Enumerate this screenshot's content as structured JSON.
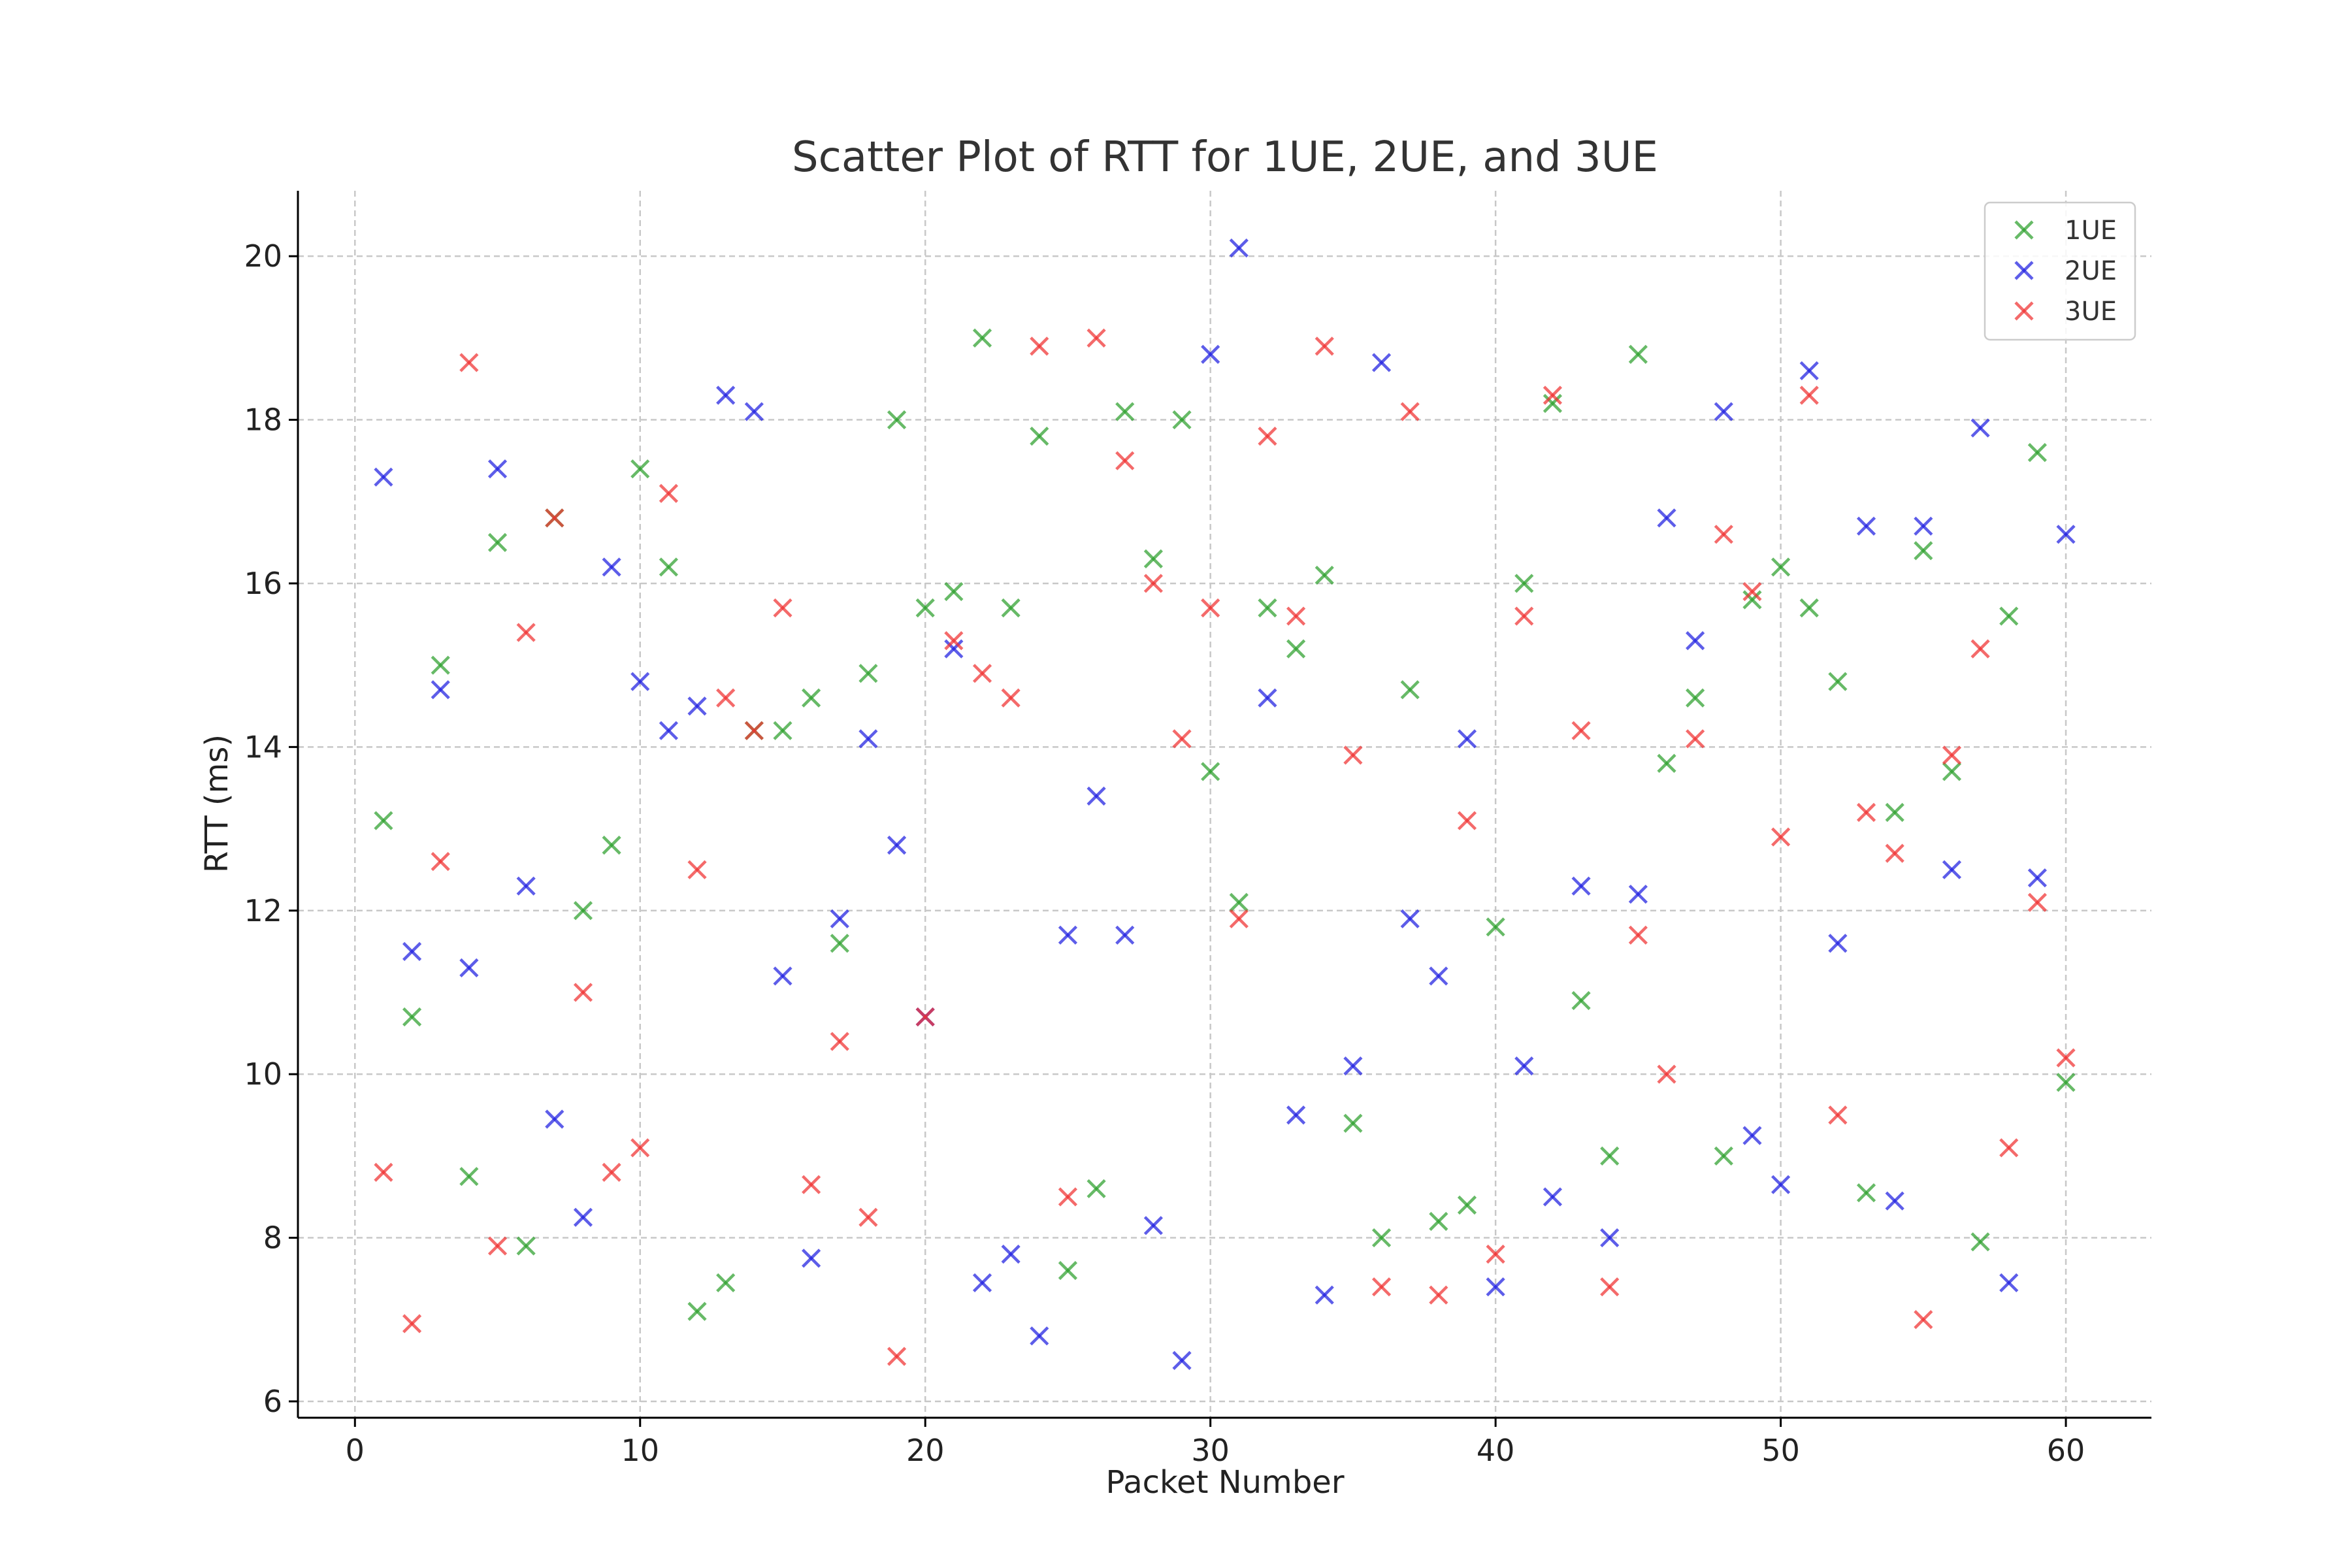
{
  "chart_data": {
    "type": "scatter",
    "title": "Scatter Plot of RTT for 1UE, 2UE, and 3UE",
    "xlabel": "Packet Number",
    "ylabel": "RTT (ms)",
    "xlim": [
      -2,
      63
    ],
    "ylim": [
      5.8,
      20.8
    ],
    "xticks": [
      0,
      10,
      20,
      30,
      40,
      50,
      60
    ],
    "yticks": [
      6,
      8,
      10,
      12,
      14,
      16,
      18,
      20
    ],
    "grid": true,
    "legend_position": "top-right",
    "marker": "x",
    "x": [
      1,
      2,
      3,
      4,
      5,
      6,
      7,
      8,
      9,
      10,
      11,
      12,
      13,
      14,
      15,
      16,
      17,
      18,
      19,
      20,
      21,
      22,
      23,
      24,
      25,
      26,
      27,
      28,
      29,
      30,
      31,
      32,
      33,
      34,
      35,
      36,
      37,
      38,
      39,
      40,
      41,
      42,
      43,
      44,
      45,
      46,
      47,
      48,
      49,
      50,
      51,
      52,
      53,
      54,
      55,
      56,
      57,
      58,
      59,
      60
    ],
    "series": [
      {
        "name": "1UE",
        "color": "#2ca02c",
        "values": [
          [
            1,
            13.1
          ],
          [
            2,
            10.7
          ],
          [
            3,
            15.0
          ],
          [
            4,
            8.75
          ],
          [
            5,
            16.5
          ],
          [
            6,
            7.9
          ],
          [
            7,
            16.8
          ],
          [
            8,
            12.0
          ],
          [
            9,
            12.8
          ],
          [
            10,
            17.4
          ],
          [
            11,
            16.2
          ],
          [
            12,
            7.1
          ],
          [
            13,
            7.45
          ],
          [
            14,
            14.2
          ],
          [
            15,
            14.2
          ],
          [
            16,
            14.6
          ],
          [
            17,
            11.6
          ],
          [
            18,
            14.9
          ],
          [
            19,
            18.0
          ],
          [
            20,
            15.7
          ],
          [
            21,
            15.9
          ],
          [
            22,
            19.0
          ],
          [
            23,
            15.7
          ],
          [
            24,
            17.8
          ],
          [
            25,
            7.6
          ],
          [
            26,
            8.6
          ],
          [
            27,
            18.1
          ],
          [
            28,
            16.3
          ],
          [
            29,
            18.0
          ],
          [
            30,
            13.7
          ],
          [
            31,
            12.1
          ],
          [
            32,
            15.7
          ],
          [
            33,
            15.2
          ],
          [
            34,
            16.1
          ],
          [
            35,
            9.4
          ],
          [
            36,
            8.0
          ],
          [
            37,
            14.7
          ],
          [
            38,
            8.2
          ],
          [
            39,
            8.4
          ],
          [
            40,
            11.8
          ],
          [
            41,
            16.0
          ],
          [
            42,
            18.2
          ],
          [
            43,
            10.9
          ],
          [
            44,
            9.0
          ],
          [
            45,
            18.8
          ],
          [
            46,
            13.8
          ],
          [
            47,
            14.6
          ],
          [
            48,
            9.0
          ],
          [
            49,
            15.8
          ],
          [
            50,
            16.2
          ],
          [
            51,
            15.7
          ],
          [
            52,
            14.8
          ],
          [
            53,
            8.55
          ],
          [
            54,
            13.2
          ],
          [
            55,
            16.4
          ],
          [
            56,
            13.7
          ],
          [
            57,
            7.95
          ],
          [
            58,
            15.6
          ],
          [
            59,
            17.6
          ],
          [
            60,
            9.9
          ]
        ]
      },
      {
        "name": "2UE",
        "color": "#1f1fe0",
        "values": [
          [
            1,
            17.3
          ],
          [
            2,
            11.5
          ],
          [
            3,
            14.7
          ],
          [
            4,
            11.3
          ],
          [
            5,
            17.4
          ],
          [
            6,
            12.3
          ],
          [
            7,
            9.45
          ],
          [
            8,
            8.25
          ],
          [
            9,
            16.2
          ],
          [
            10,
            14.8
          ],
          [
            11,
            14.2
          ],
          [
            12,
            14.5
          ],
          [
            13,
            18.3
          ],
          [
            14,
            18.1
          ],
          [
            15,
            11.2
          ],
          [
            16,
            7.75
          ],
          [
            17,
            11.9
          ],
          [
            18,
            14.1
          ],
          [
            19,
            12.8
          ],
          [
            20,
            10.7
          ],
          [
            21,
            15.2
          ],
          [
            22,
            7.45
          ],
          [
            23,
            7.8
          ],
          [
            24,
            6.8
          ],
          [
            25,
            11.7
          ],
          [
            26,
            13.4
          ],
          [
            27,
            11.7
          ],
          [
            28,
            8.15
          ],
          [
            29,
            6.5
          ],
          [
            30,
            18.8
          ],
          [
            31,
            20.1
          ],
          [
            32,
            14.6
          ],
          [
            33,
            9.5
          ],
          [
            34,
            7.3
          ],
          [
            35,
            10.1
          ],
          [
            36,
            18.7
          ],
          [
            37,
            11.9
          ],
          [
            38,
            11.2
          ],
          [
            39,
            14.1
          ],
          [
            40,
            7.4
          ],
          [
            41,
            10.1
          ],
          [
            42,
            8.5
          ],
          [
            43,
            12.3
          ],
          [
            44,
            8.0
          ],
          [
            45,
            12.2
          ],
          [
            46,
            16.8
          ],
          [
            47,
            15.3
          ],
          [
            48,
            18.1
          ],
          [
            49,
            9.25
          ],
          [
            50,
            8.65
          ],
          [
            51,
            18.6
          ],
          [
            52,
            11.6
          ],
          [
            53,
            16.7
          ],
          [
            54,
            8.45
          ],
          [
            55,
            16.7
          ],
          [
            56,
            12.5
          ],
          [
            57,
            17.9
          ],
          [
            58,
            7.45
          ],
          [
            59,
            12.4
          ],
          [
            60,
            16.6
          ]
        ]
      },
      {
        "name": "3UE",
        "color": "#f03030",
        "values": [
          [
            1,
            8.8
          ],
          [
            2,
            6.95
          ],
          [
            3,
            12.6
          ],
          [
            4,
            18.7
          ],
          [
            5,
            7.9
          ],
          [
            6,
            15.4
          ],
          [
            7,
            16.8
          ],
          [
            8,
            11.0
          ],
          [
            9,
            8.8
          ],
          [
            10,
            9.1
          ],
          [
            11,
            17.1
          ],
          [
            12,
            12.5
          ],
          [
            13,
            14.6
          ],
          [
            14,
            14.2
          ],
          [
            15,
            15.7
          ],
          [
            16,
            8.65
          ],
          [
            17,
            10.4
          ],
          [
            18,
            8.25
          ],
          [
            19,
            6.55
          ],
          [
            20,
            10.7
          ],
          [
            21,
            15.3
          ],
          [
            22,
            14.9
          ],
          [
            23,
            14.6
          ],
          [
            24,
            18.9
          ],
          [
            25,
            8.5
          ],
          [
            26,
            19.0
          ],
          [
            27,
            17.5
          ],
          [
            28,
            16.0
          ],
          [
            29,
            14.1
          ],
          [
            30,
            15.7
          ],
          [
            31,
            11.9
          ],
          [
            32,
            17.8
          ],
          [
            33,
            15.6
          ],
          [
            34,
            18.9
          ],
          [
            35,
            13.9
          ],
          [
            36,
            7.4
          ],
          [
            37,
            18.1
          ],
          [
            38,
            7.3
          ],
          [
            39,
            13.1
          ],
          [
            40,
            7.8
          ],
          [
            41,
            15.6
          ],
          [
            42,
            18.3
          ],
          [
            43,
            14.2
          ],
          [
            44,
            7.4
          ],
          [
            45,
            11.7
          ],
          [
            46,
            10.0
          ],
          [
            47,
            14.1
          ],
          [
            48,
            16.6
          ],
          [
            49,
            15.9
          ],
          [
            50,
            12.9
          ],
          [
            51,
            18.3
          ],
          [
            52,
            9.5
          ],
          [
            53,
            13.2
          ],
          [
            54,
            12.7
          ],
          [
            55,
            7.0
          ],
          [
            56,
            13.9
          ],
          [
            57,
            15.2
          ],
          [
            58,
            9.1
          ],
          [
            59,
            12.1
          ],
          [
            60,
            10.2
          ]
        ]
      }
    ]
  }
}
